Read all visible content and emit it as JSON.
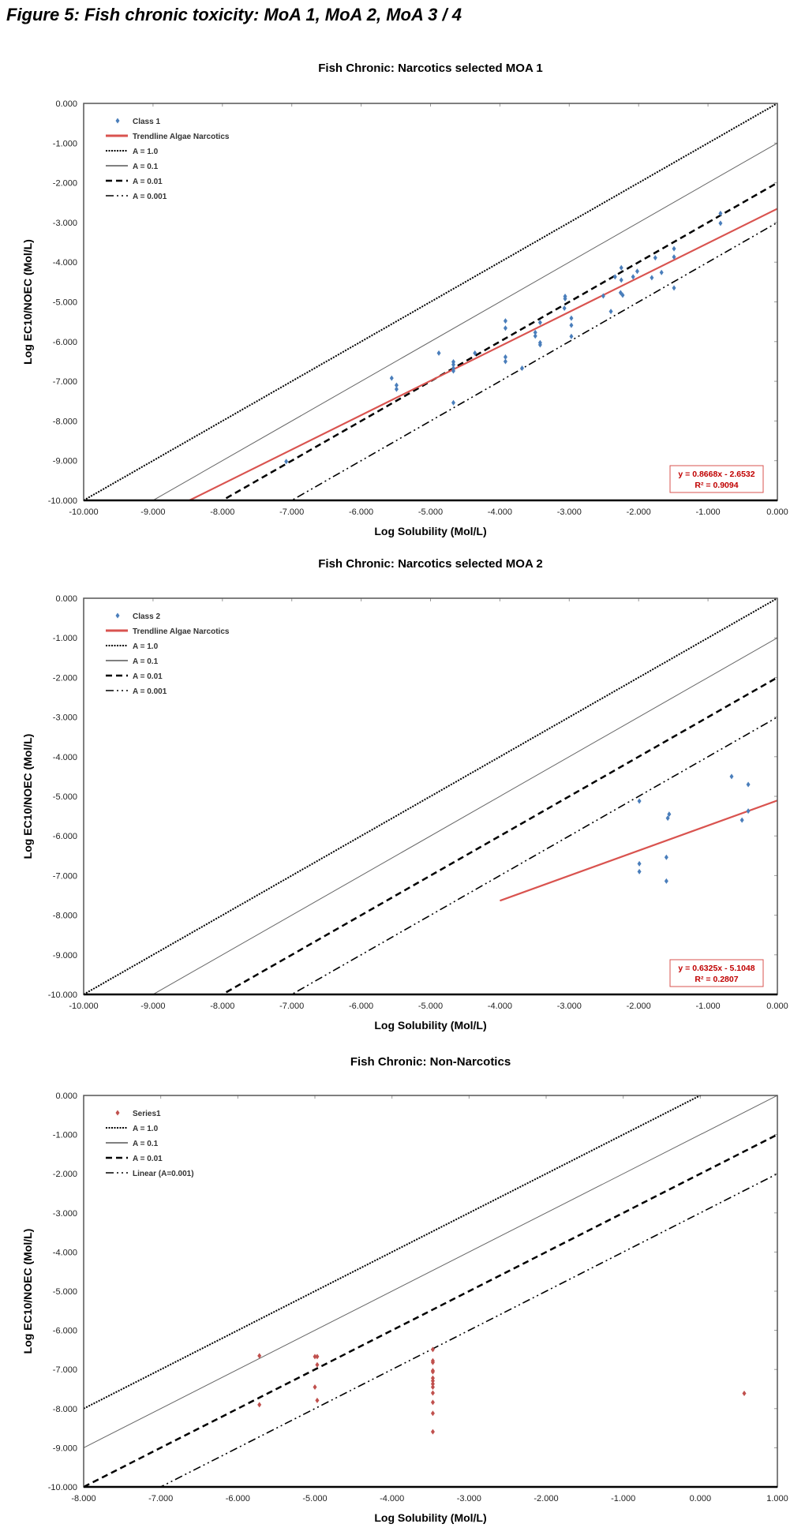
{
  "figure_title": "Figure 5: Fish chronic toxicity: MoA 1, MoA 2, MoA 3 / 4",
  "chart_data": [
    {
      "type": "scatter",
      "title": "Fish Chronic: Narcotics selected MOA 1",
      "xlabel": "Log Solubility (Mol/L)",
      "ylabel": "Log EC10/NOEC (Mol/L)",
      "xlim": [
        -10,
        0
      ],
      "ylim": [
        -10,
        0
      ],
      "xticks": [
        "-10.000",
        "-9.000",
        "-8.000",
        "-7.000",
        "-6.000",
        "-5.000",
        "-4.000",
        "-3.000",
        "-2.000",
        "-1.000",
        "0.000"
      ],
      "yticks": [
        "0.000",
        "-1.000",
        "-2.000",
        "-3.000",
        "-4.000",
        "-5.000",
        "-6.000",
        "-7.000",
        "-8.000",
        "-9.000",
        "-10.000"
      ],
      "grid": false,
      "legend_position": "top-left",
      "series": [
        {
          "name": "Class 1",
          "color": "#4a7ebb",
          "marker": "diamond",
          "points": [
            [
              -5.56,
              -6.92
            ],
            [
              -5.49,
              -7.1
            ],
            [
              -5.49,
              -7.2
            ],
            [
              -4.88,
              -6.29
            ],
            [
              -4.67,
              -6.51
            ],
            [
              -4.67,
              -6.58
            ],
            [
              -4.67,
              -6.67
            ],
            [
              -4.67,
              -6.74
            ],
            [
              -4.67,
              -7.54
            ],
            [
              -4.36,
              -6.29
            ],
            [
              -3.92,
              -5.48
            ],
            [
              -3.92,
              -5.66
            ],
            [
              -3.92,
              -6.39
            ],
            [
              -3.92,
              -6.5
            ],
            [
              -3.68,
              -6.67
            ],
            [
              -3.49,
              -5.77
            ],
            [
              -3.49,
              -5.86
            ],
            [
              -3.42,
              -5.52
            ],
            [
              -3.42,
              -6.03
            ],
            [
              -3.42,
              -6.08
            ],
            [
              -3.06,
              -4.86
            ],
            [
              -3.06,
              -4.92
            ],
            [
              -3.07,
              -5.16
            ],
            [
              -2.97,
              -5.41
            ],
            [
              -2.97,
              -5.59
            ],
            [
              -2.97,
              -5.87
            ],
            [
              -2.51,
              -4.85
            ],
            [
              -2.4,
              -5.24
            ],
            [
              -2.34,
              -4.37
            ],
            [
              -2.25,
              -4.14
            ],
            [
              -2.25,
              -4.45
            ],
            [
              -2.26,
              -4.77
            ],
            [
              -2.23,
              -4.83
            ],
            [
              -2.08,
              -4.37
            ],
            [
              -2.02,
              -4.23
            ],
            [
              -1.81,
              -4.39
            ],
            [
              -1.76,
              -3.89
            ],
            [
              -1.67,
              -4.26
            ],
            [
              -1.49,
              -3.66
            ],
            [
              -1.49,
              -3.87
            ],
            [
              -1.49,
              -4.65
            ],
            [
              -0.82,
              -2.77
            ],
            [
              -0.82,
              -3.02
            ],
            [
              -7.08,
              -9.02
            ]
          ]
        }
      ],
      "trendline": {
        "name": "Trendline Algae Narcotics",
        "color": "#d9534f",
        "slope": 0.8668,
        "intercept": -2.6532,
        "x_range": [
          -10,
          0
        ],
        "equation": "y = 0.8668x - 2.6532",
        "r2": "R² = 0.9094"
      },
      "reference_lines": [
        {
          "name": "A = 1.0",
          "intercept": 0,
          "style": "dotted"
        },
        {
          "name": "A = 0.1",
          "intercept": -1,
          "style": "solid"
        },
        {
          "name": "A = 0.01",
          "intercept": -2,
          "style": "dashed"
        },
        {
          "name": "A = 0.001",
          "intercept": -3,
          "style": "dashdot"
        }
      ]
    },
    {
      "type": "scatter",
      "title": "Fish Chronic: Narcotics selected MOA 2",
      "xlabel": "Log Solubility (Mol/L)",
      "ylabel": "Log EC10/NOEC (Mol/L)",
      "xlim": [
        -10,
        0
      ],
      "ylim": [
        -10,
        0
      ],
      "xticks": [
        "-10.000",
        "-9.000",
        "-8.000",
        "-7.000",
        "-6.000",
        "-5.000",
        "-4.000",
        "-3.000",
        "-2.000",
        "-1.000",
        "0.000"
      ],
      "yticks": [
        "0.000",
        "-1.000",
        "-2.000",
        "-3.000",
        "-4.000",
        "-5.000",
        "-6.000",
        "-7.000",
        "-8.000",
        "-9.000",
        "-10.000"
      ],
      "grid": false,
      "legend_position": "top-left",
      "series": [
        {
          "name": "Class 2",
          "color": "#4a7ebb",
          "marker": "diamond",
          "points": [
            [
              -1.99,
              -5.12
            ],
            [
              -1.99,
              -6.7
            ],
            [
              -1.99,
              -6.9
            ],
            [
              -1.58,
              -5.55
            ],
            [
              -1.56,
              -5.45
            ],
            [
              -1.6,
              -6.54
            ],
            [
              -1.6,
              -7.14
            ],
            [
              -0.66,
              -4.5
            ],
            [
              -0.42,
              -4.7
            ],
            [
              -0.51,
              -5.6
            ],
            [
              -0.42,
              -5.37
            ]
          ]
        }
      ],
      "trendline": {
        "name": "Trendline Algae Narcotics",
        "color": "#d9534f",
        "slope": 0.6325,
        "intercept": -5.1048,
        "x_range": [
          -4,
          0
        ],
        "equation": "y = 0.6325x - 5.1048",
        "r2": "R² = 0.2807"
      },
      "reference_lines": [
        {
          "name": "A = 1.0",
          "intercept": 0,
          "style": "dotted"
        },
        {
          "name": "A = 0.1",
          "intercept": -1,
          "style": "solid"
        },
        {
          "name": "A = 0.01",
          "intercept": -2,
          "style": "dashed"
        },
        {
          "name": "A = 0.001",
          "intercept": -3,
          "style": "dashdot"
        }
      ]
    },
    {
      "type": "scatter",
      "title": "Fish Chronic: Non-Narcotics",
      "xlabel": "Log Solubility (Mol/L)",
      "ylabel": "Log EC10/NOEC (Mol/L)",
      "xlim": [
        -8,
        1
      ],
      "ylim": [
        -10,
        0
      ],
      "xticks": [
        "-8.000",
        "-7.000",
        "-6.000",
        "-5.000",
        "-4.000",
        "-3.000",
        "-2.000",
        "-1.000",
        "0.000",
        "1.000"
      ],
      "yticks": [
        "0.000",
        "-1.000",
        "-2.000",
        "-3.000",
        "-4.000",
        "-5.000",
        "-6.000",
        "-7.000",
        "-8.000",
        "-9.000",
        "-10.000"
      ],
      "grid": false,
      "legend_position": "top-left",
      "series": [
        {
          "name": "Series1",
          "color": "#c0504d",
          "marker": "diamond",
          "points": [
            [
              -5.72,
              -6.65
            ],
            [
              -5.72,
              -7.9
            ],
            [
              -5.0,
              -6.67
            ],
            [
              -4.97,
              -6.67
            ],
            [
              -4.97,
              -6.88
            ],
            [
              -5.0,
              -7.45
            ],
            [
              -4.97,
              -7.79
            ],
            [
              -3.47,
              -6.49
            ],
            [
              -3.47,
              -6.78
            ],
            [
              -3.47,
              -6.82
            ],
            [
              -3.47,
              -7.03
            ],
            [
              -3.47,
              -7.06
            ],
            [
              -3.47,
              -7.22
            ],
            [
              -3.47,
              -7.29
            ],
            [
              -3.47,
              -7.37
            ],
            [
              -3.47,
              -7.45
            ],
            [
              -3.47,
              -7.6
            ],
            [
              -3.47,
              -7.84
            ],
            [
              -3.47,
              -8.12
            ],
            [
              -3.47,
              -8.59
            ],
            [
              0.57,
              -7.61
            ]
          ]
        }
      ],
      "trendline": null,
      "reference_lines": [
        {
          "name": "A = 1.0",
          "intercept": 0,
          "style": "dotted"
        },
        {
          "name": "A = 0.1",
          "intercept": -1,
          "style": "solid"
        },
        {
          "name": "A = 0.01",
          "intercept": -2,
          "style": "dashed"
        },
        {
          "name": "Linear (A=0.001)",
          "intercept": -3,
          "style": "dashdot"
        }
      ]
    }
  ]
}
